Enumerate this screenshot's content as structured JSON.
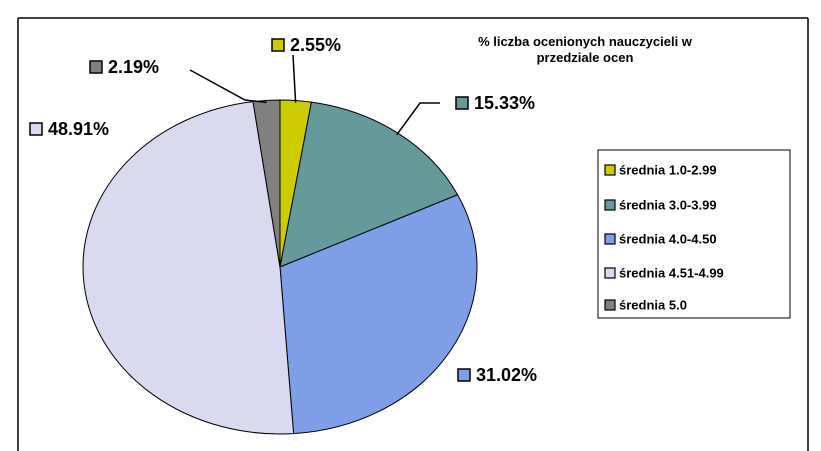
{
  "chart_data": {
    "type": "pie",
    "title": "% liczba ocenionych nauczycieli w przedziale ocen",
    "categories": [
      "średnia 1.0-2.99",
      "średnia 3.0-3.99",
      "średnia 4.0-4.50",
      "średnia 4.51-4.99",
      "średnia 5.0"
    ],
    "values": [
      2.55,
      15.33,
      31.02,
      48.91,
      2.19
    ],
    "value_labels": [
      "2.55%",
      "15.33%",
      "31.02%",
      "48.91%",
      "2.19%"
    ],
    "colors": [
      "#cccc00",
      "#669999",
      "#7f9ee8",
      "#d9d9ef",
      "#808080"
    ],
    "legend": "right"
  }
}
